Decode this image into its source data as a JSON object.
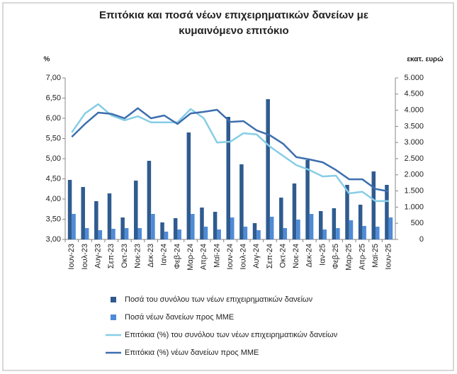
{
  "chart_data": {
    "type": "combo",
    "title": [
      "Επιτόκια και ποσά νέων επιχειρηματικών δανείων με",
      "κυμαινόμενο επιτόκιο"
    ],
    "ylabel": "%",
    "y2label": "εκατ. ευρώ",
    "categories": [
      "Ιουν-23",
      "Ιουλ-23",
      "Αυγ-23",
      "Σεπ-23",
      "Οκτ-23",
      "Νοε-23",
      "Δεκ-23",
      "Ιαν-24",
      "Φεβ-24",
      "Μαρ-24",
      "Απρ-24",
      "Μαϊ-24",
      "Ιουν-24",
      "Ιουλ-24",
      "Αυγ-24",
      "Σεπ-24",
      "Οκτ-24",
      "Νοε-24",
      "Δεκ-24",
      "Ιαν-25",
      "Φεβ-25",
      "Μαρ-25",
      "Απρ-25",
      "Μαϊ-25",
      "Ιουν-25"
    ],
    "ylim": [
      3,
      7
    ],
    "yticks": [
      {
        "value": 3,
        "label": "3,00"
      },
      {
        "value": 3.5,
        "label": "3,50"
      },
      {
        "value": 4,
        "label": "4,00"
      },
      {
        "value": 4.5,
        "label": "4,50"
      },
      {
        "value": 5,
        "label": "5,00"
      },
      {
        "value": 5.5,
        "label": "5,50"
      },
      {
        "value": 6,
        "label": "6,00"
      },
      {
        "value": 6.5,
        "label": "6,50"
      },
      {
        "value": 7,
        "label": "7,00"
      }
    ],
    "y2lim": [
      0,
      5000
    ],
    "y2ticks": [
      0,
      500,
      {
        "value": 1000,
        "label": "1.000"
      },
      {
        "value": 1500,
        "label": "1.500"
      },
      {
        "value": 2000,
        "label": "2.000"
      },
      {
        "value": 2500,
        "label": "2.500"
      },
      {
        "value": 3000,
        "label": "3.000"
      },
      {
        "value": 3500,
        "label": "3.500"
      },
      {
        "value": 4000,
        "label": "4.000"
      },
      {
        "value": 4500,
        "label": "4.500"
      },
      {
        "value": 5000,
        "label": "5.000"
      }
    ],
    "grid": false,
    "series": [
      {
        "name": "Ποσά του συνόλου των νέων επιχειρηματικών δανείων",
        "type": "bar",
        "axis": "y2",
        "color": "#2f5b8f",
        "values": [
          1842,
          1623,
          1184,
          1425,
          680,
          1820,
          2434,
          526,
          658,
          3311,
          987,
          855,
          3794,
          2325,
          504,
          4342,
          1294,
          1732,
          2456,
          877,
          965,
          1689,
          1075,
          2105,
          1689
        ]
      },
      {
        "name": "Ποσά νέων δανείων προς ΜΜΕ",
        "type": "bar",
        "axis": "y2",
        "color": "#4f8bd6",
        "values": [
          789,
          351,
          285,
          329,
          351,
          351,
          789,
          241,
          307,
          789,
          395,
          307,
          680,
          395,
          285,
          702,
          351,
          614,
          789,
          307,
          351,
          592,
          417,
          395,
          680
        ]
      },
      {
        "name": "Επιτόκια (%) του συνόλου των νέων επιχειρηματικών δανείων",
        "type": "line",
        "color": "#86cde6",
        "values": [
          5.65,
          6.12,
          6.35,
          6.07,
          5.95,
          6.05,
          5.9,
          5.9,
          5.9,
          6.23,
          6.0,
          5.4,
          5.42,
          5.63,
          5.6,
          5.3,
          5.07,
          4.84,
          4.72,
          4.56,
          4.58,
          4.14,
          4.18,
          3.95,
          3.95
        ]
      },
      {
        "name": "Επιτόκια (%) νέων δανείων προς ΜΜΕ",
        "type": "line",
        "color": "#3d6eae",
        "values": [
          5.54,
          5.86,
          6.14,
          6.11,
          6.0,
          6.25,
          6.0,
          6.07,
          5.86,
          6.12,
          6.16,
          6.21,
          5.91,
          5.93,
          5.7,
          5.58,
          5.37,
          5.04,
          4.98,
          4.91,
          4.72,
          4.49,
          4.49,
          4.25,
          4.19
        ]
      }
    ]
  }
}
